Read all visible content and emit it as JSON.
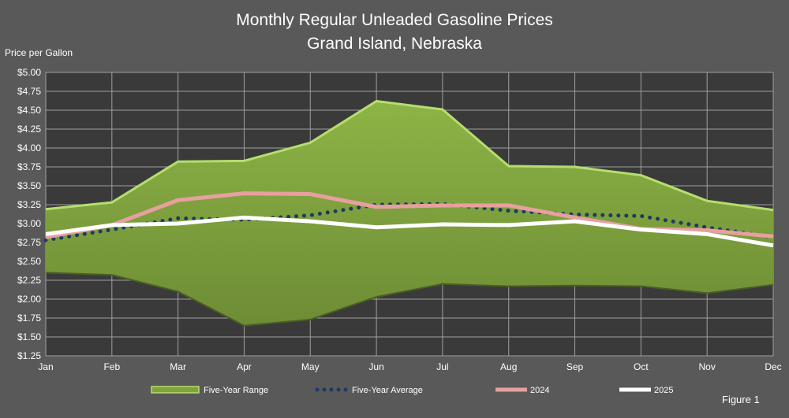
{
  "chart_data": {
    "type": "area",
    "title": "Monthly Regular Unleaded Gasoline Prices",
    "subtitle": "Grand Island, Nebraska",
    "ylabel": "Price per Gallon",
    "xlabel": "",
    "categories": [
      "Jan",
      "Feb",
      "Mar",
      "Apr",
      "May",
      "Jun",
      "Jul",
      "Aug",
      "Sep",
      "Oct",
      "Nov",
      "Dec"
    ],
    "ylim": [
      1.25,
      5.0
    ],
    "yticks": [
      "$1.25",
      "$1.50",
      "$1.75",
      "$2.00",
      "$2.25",
      "$2.50",
      "$2.75",
      "$3.00",
      "$3.25",
      "$3.50",
      "$3.75",
      "$4.00",
      "$4.25",
      "$4.50",
      "$4.75",
      "$5.00"
    ],
    "grid": true,
    "legend_placement": "bottom",
    "range": {
      "name": "Five-Year Range",
      "color": "#7fa33a",
      "upper": [
        3.19,
        3.28,
        3.82,
        3.83,
        4.07,
        4.62,
        4.51,
        3.76,
        3.75,
        3.64,
        3.3,
        3.18
      ],
      "lower": [
        2.35,
        2.32,
        2.1,
        1.65,
        1.73,
        2.03,
        2.2,
        2.17,
        2.18,
        2.17,
        2.08,
        2.19
      ]
    },
    "series": [
      {
        "name": "Five-Year Average",
        "color": "#1f3864",
        "style": "dotted",
        "values": [
          2.78,
          2.92,
          3.07,
          3.05,
          3.11,
          3.25,
          3.26,
          3.17,
          3.12,
          3.1,
          2.95,
          2.82
        ]
      },
      {
        "name": "2024",
        "color": "#e6a0a0",
        "style": "solid",
        "values": [
          2.82,
          2.98,
          3.31,
          3.4,
          3.39,
          3.22,
          3.24,
          3.24,
          3.08,
          2.93,
          2.91,
          2.83
        ]
      },
      {
        "name": "2025",
        "color": "#ffffff",
        "style": "solid",
        "values": [
          2.86,
          2.98,
          3.0,
          3.08,
          3.03,
          2.95,
          2.99,
          2.98,
          3.03,
          2.92,
          2.86,
          2.71
        ]
      }
    ]
  },
  "figure_label": "Figure 1"
}
